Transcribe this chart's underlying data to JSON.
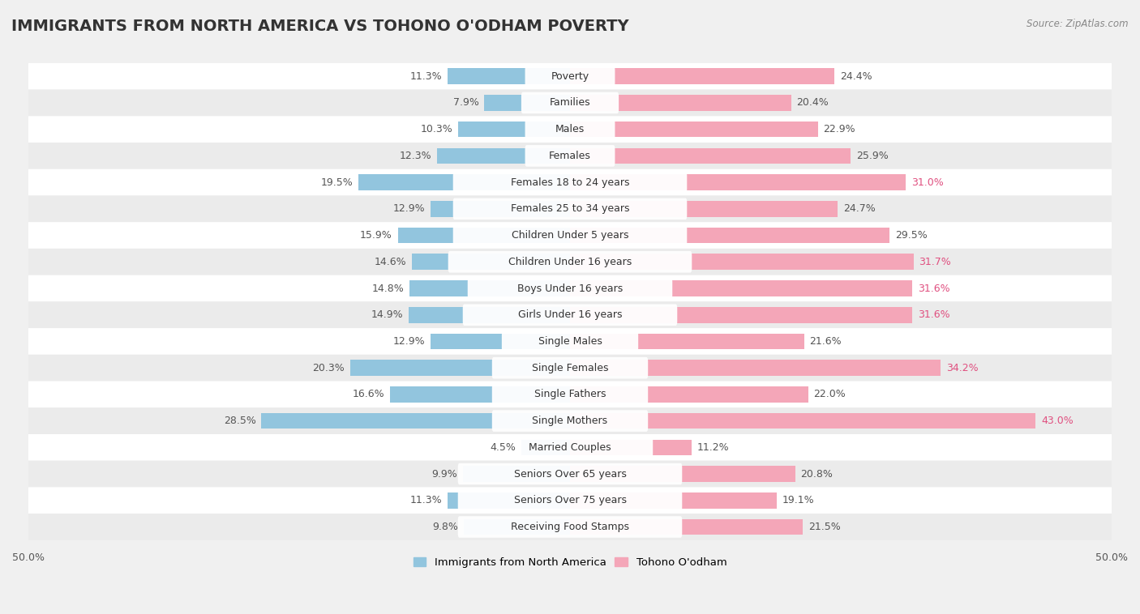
{
  "title": "IMMIGRANTS FROM NORTH AMERICA VS TOHONO O'ODHAM POVERTY",
  "source": "Source: ZipAtlas.com",
  "categories": [
    "Poverty",
    "Families",
    "Males",
    "Females",
    "Females 18 to 24 years",
    "Females 25 to 34 years",
    "Children Under 5 years",
    "Children Under 16 years",
    "Boys Under 16 years",
    "Girls Under 16 years",
    "Single Males",
    "Single Females",
    "Single Fathers",
    "Single Mothers",
    "Married Couples",
    "Seniors Over 65 years",
    "Seniors Over 75 years",
    "Receiving Food Stamps"
  ],
  "left_values": [
    11.3,
    7.9,
    10.3,
    12.3,
    19.5,
    12.9,
    15.9,
    14.6,
    14.8,
    14.9,
    12.9,
    20.3,
    16.6,
    28.5,
    4.5,
    9.9,
    11.3,
    9.8
  ],
  "right_values": [
    24.4,
    20.4,
    22.9,
    25.9,
    31.0,
    24.7,
    29.5,
    31.7,
    31.6,
    31.6,
    21.6,
    34.2,
    22.0,
    43.0,
    11.2,
    20.8,
    19.1,
    21.5
  ],
  "left_color": "#92c5de",
  "right_color": "#f4a6b8",
  "row_color_even": "#ffffff",
  "row_color_odd": "#ebebeb",
  "background_color": "#f0f0f0",
  "label_bg_color": "#ffffff",
  "axis_max": 50.0,
  "legend_left": "Immigrants from North America",
  "legend_right": "Tohono O'odham",
  "title_fontsize": 14,
  "label_fontsize": 9,
  "value_fontsize": 9,
  "right_value_high_color": "#e05080",
  "right_value_low_color": "#555555",
  "left_value_color": "#555555",
  "high_threshold": 30.0
}
